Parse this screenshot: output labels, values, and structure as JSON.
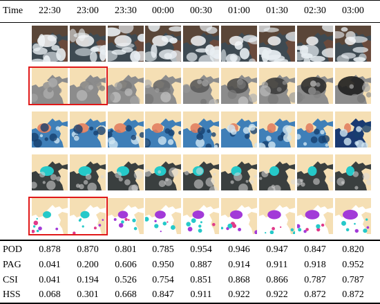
{
  "header": {
    "label": "Time",
    "times": [
      "22:30",
      "23:00",
      "23:30",
      "00:00",
      "00:30",
      "01:00",
      "01:30",
      "02:30",
      "03:00"
    ]
  },
  "image_rows": [
    {
      "name": "true-color-image",
      "kind": "truecolor"
    },
    {
      "name": "grayscale-image",
      "kind": "gray"
    },
    {
      "name": "false-color-image",
      "kind": "falsecolor"
    },
    {
      "name": "detection-overlay-image",
      "kind": "cyan"
    },
    {
      "name": "validation-image",
      "kind": "validation"
    }
  ],
  "highlight": {
    "rows": [
      1,
      4
    ],
    "columns": [
      0,
      1
    ],
    "color": "#e01818"
  },
  "metrics": [
    {
      "label": "POD",
      "values": [
        "0.878",
        "0.870",
        "0.801",
        "0.785",
        "0.954",
        "0.946",
        "0.947",
        "0.847",
        "0.820"
      ]
    },
    {
      "label": "PAG",
      "values": [
        "0.041",
        "0.200",
        "0.606",
        "0.950",
        "0.887",
        "0.914",
        "0.911",
        "0.918",
        "0.952"
      ]
    },
    {
      "label": "CSI",
      "values": [
        "0.041",
        "0.194",
        "0.526",
        "0.754",
        "0.851",
        "0.868",
        "0.866",
        "0.787",
        "0.787"
      ]
    },
    {
      "label": "HSS",
      "values": [
        "0.068",
        "0.301",
        "0.668",
        "0.847",
        "0.911",
        "0.922",
        "0.922",
        "0.872",
        "0.872"
      ]
    }
  ]
}
